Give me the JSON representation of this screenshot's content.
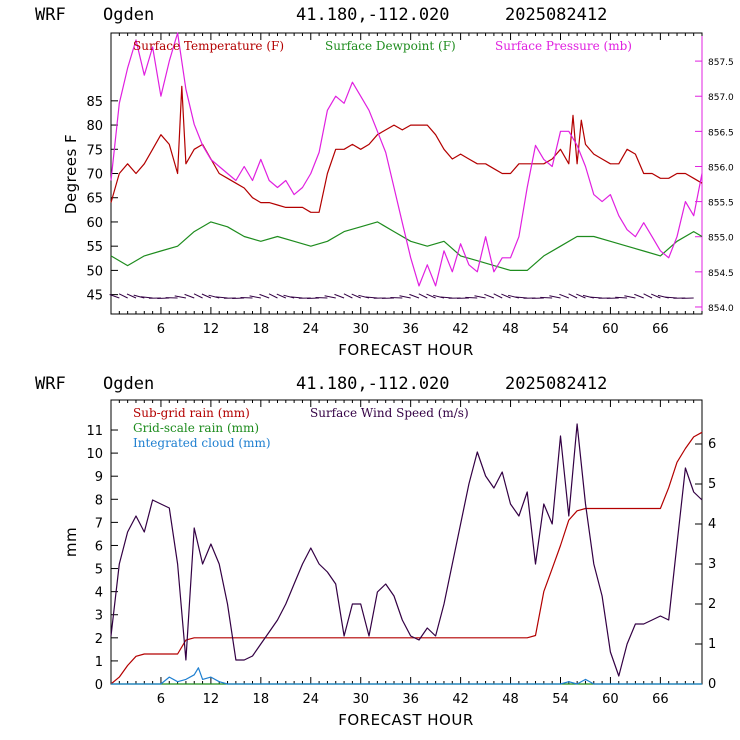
{
  "colors": {
    "temperature": "#b30000",
    "dewpoint": "#1e8c1e",
    "pressure": "#e020e0",
    "subgrid_rain": "#b30000",
    "gridscale_rain": "#1e8c1e",
    "cloud": "#1e7fd0",
    "wind": "#330044",
    "barbs": "#330044"
  },
  "chart_data": [
    {
      "type": "line",
      "header": {
        "model": "WRF",
        "location": "Ogden",
        "coords": "41.180,-112.020",
        "init": "2025082412"
      },
      "xlabel": "FORECAST HOUR",
      "ylabel": "Degrees F",
      "xlim": [
        0,
        71
      ],
      "ylim": [
        41,
        99
      ],
      "y2lim": [
        853.9,
        857.9
      ],
      "xticks": [
        6,
        12,
        18,
        24,
        30,
        36,
        42,
        48,
        54,
        60,
        66
      ],
      "yticks": [
        45,
        50,
        55,
        60,
        65,
        70,
        75,
        80,
        85
      ],
      "y2ticks": [
        "854.0",
        "854.5",
        "855.0",
        "855.5",
        "856.0",
        "856.5",
        "857.0",
        "857.5"
      ],
      "legend_placement": "top",
      "series": [
        {
          "name": "Surface Temperature (F)",
          "axis": "left",
          "x": [
            0,
            1,
            2,
            3,
            4,
            5,
            6,
            7,
            8,
            8.5,
            9,
            10,
            11,
            12,
            13,
            14,
            15,
            16,
            17,
            18,
            19,
            20,
            21,
            22,
            23,
            24,
            25,
            26,
            27,
            28,
            29,
            30,
            31,
            32,
            33,
            34,
            35,
            36,
            37,
            38,
            39,
            40,
            41,
            42,
            43,
            44,
            45,
            46,
            47,
            48,
            49,
            50,
            51,
            52,
            53,
            54,
            55,
            55.5,
            56,
            56.5,
            57,
            58,
            59,
            60,
            61,
            62,
            63,
            64,
            65,
            66,
            67,
            68,
            69,
            70,
            71
          ],
          "y": [
            64,
            70,
            72,
            70,
            72,
            75,
            78,
            76,
            70,
            88,
            72,
            75,
            76,
            73,
            70,
            69,
            68,
            67,
            65,
            64,
            64,
            63.5,
            63,
            63,
            63,
            62,
            62,
            70,
            75,
            75,
            76,
            75,
            76,
            78,
            79,
            80,
            79,
            80,
            80,
            80,
            78,
            75,
            73,
            74,
            73,
            72,
            72,
            71,
            70,
            70,
            72,
            72,
            72,
            72,
            73,
            75,
            72,
            82,
            72,
            81,
            76,
            74,
            73,
            72,
            72,
            75,
            74,
            70,
            70,
            69,
            69,
            70,
            70,
            69,
            68
          ]
        },
        {
          "name": "Surface Dewpoint (F)",
          "axis": "left",
          "x": [
            0,
            2,
            4,
            6,
            8,
            10,
            12,
            14,
            16,
            18,
            20,
            22,
            24,
            26,
            28,
            30,
            32,
            34,
            36,
            38,
            40,
            42,
            44,
            46,
            48,
            50,
            52,
            54,
            56,
            58,
            60,
            62,
            64,
            66,
            68,
            70,
            71
          ],
          "y": [
            53,
            51,
            53,
            54,
            55,
            58,
            60,
            59,
            57,
            56,
            57,
            56,
            55,
            56,
            58,
            59,
            60,
            58,
            56,
            55,
            56,
            53,
            52,
            51,
            50,
            50,
            53,
            55,
            57,
            57,
            56,
            55,
            54,
            53,
            56,
            58,
            57
          ]
        },
        {
          "name": "Surface Pressure (mb)",
          "axis": "right",
          "x": [
            0,
            1,
            2,
            3,
            4,
            5,
            6,
            7,
            8,
            9,
            10,
            11,
            12,
            13,
            14,
            15,
            16,
            17,
            18,
            19,
            20,
            21,
            22,
            23,
            24,
            25,
            26,
            27,
            28,
            29,
            30,
            31,
            32,
            33,
            34,
            35,
            36,
            37,
            38,
            39,
            40,
            41,
            42,
            43,
            44,
            45,
            46,
            47,
            48,
            49,
            50,
            51,
            52,
            53,
            54,
            55,
            56,
            57,
            58,
            59,
            60,
            61,
            62,
            63,
            64,
            65,
            66,
            67,
            68,
            69,
            70,
            71
          ],
          "y": [
            855.8,
            856.9,
            857.4,
            857.8,
            857.3,
            857.7,
            857.0,
            857.5,
            857.9,
            857.1,
            856.6,
            856.3,
            856.1,
            856.0,
            855.9,
            855.8,
            856.0,
            855.8,
            856.1,
            855.8,
            855.7,
            855.8,
            855.6,
            855.7,
            855.9,
            856.2,
            856.8,
            857.0,
            856.9,
            857.2,
            857.0,
            856.8,
            856.5,
            856.2,
            855.7,
            855.2,
            854.7,
            854.3,
            854.6,
            854.3,
            854.8,
            854.5,
            854.9,
            854.6,
            854.5,
            855.0,
            854.5,
            854.7,
            854.7,
            855.0,
            855.7,
            856.3,
            856.1,
            856.0,
            856.5,
            856.5,
            856.3,
            856.0,
            855.6,
            855.5,
            855.6,
            855.3,
            855.1,
            855.0,
            855.2,
            855.0,
            854.8,
            854.7,
            855.0,
            855.5,
            855.3,
            855.9
          ]
        }
      ]
    },
    {
      "type": "line",
      "header": {
        "model": "WRF",
        "location": "Ogden",
        "coords": "41.180,-112.020",
        "init": "2025082412"
      },
      "xlabel": "FORECAST HOUR",
      "ylabel": "mm",
      "xlim": [
        0,
        71
      ],
      "ylim": [
        0,
        12.3
      ],
      "y2lim": [
        0,
        7.1
      ],
      "xticks": [
        6,
        12,
        18,
        24,
        30,
        36,
        42,
        48,
        54,
        60,
        66
      ],
      "yticks": [
        0,
        1,
        2,
        3,
        4,
        5,
        6,
        7,
        8,
        9,
        10,
        11
      ],
      "y2ticks": [
        0,
        1,
        2,
        3,
        4,
        5,
        6
      ],
      "legend_placement": "top-left",
      "series": [
        {
          "name": "Sub-grid rain (mm)",
          "axis": "left",
          "x": [
            0,
            1,
            2,
            3,
            4,
            5,
            6,
            7,
            8,
            9,
            10,
            11,
            12,
            13,
            14,
            20,
            30,
            40,
            48,
            50,
            51,
            52,
            53,
            54,
            55,
            56,
            57,
            58,
            59,
            60,
            66,
            67,
            68,
            69,
            70,
            71
          ],
          "y": [
            0,
            0.3,
            0.8,
            1.2,
            1.3,
            1.3,
            1.3,
            1.3,
            1.3,
            1.9,
            2.0,
            2.0,
            2.0,
            2.0,
            2.0,
            2.0,
            2.0,
            2.0,
            2.0,
            2.0,
            2.1,
            4.0,
            5.0,
            6.0,
            7.1,
            7.5,
            7.6,
            7.6,
            7.6,
            7.6,
            7.6,
            8.5,
            9.6,
            10.2,
            10.7,
            10.9
          ]
        },
        {
          "name": "Grid-scale rain (mm)",
          "axis": "left",
          "x": [
            0,
            71
          ],
          "y": [
            0,
            0
          ]
        },
        {
          "name": "Integrated cloud (mm)",
          "axis": "left",
          "x": [
            0,
            6,
            7,
            8,
            9,
            10,
            10.5,
            11,
            12,
            13,
            14,
            16,
            54,
            55,
            56,
            57,
            58,
            71
          ],
          "y": [
            0,
            0,
            0.3,
            0.1,
            0.2,
            0.4,
            0.7,
            0.2,
            0.3,
            0.1,
            0,
            0,
            0,
            0.1,
            0,
            0.2,
            0,
            0
          ]
        },
        {
          "name": "Surface Wind Speed (m/s)",
          "axis": "right",
          "x": [
            0,
            1,
            2,
            3,
            4,
            5,
            6,
            7,
            8,
            9,
            10,
            11,
            12,
            13,
            14,
            15,
            16,
            17,
            18,
            19,
            20,
            21,
            22,
            23,
            24,
            25,
            26,
            27,
            28,
            29,
            30,
            31,
            32,
            33,
            34,
            35,
            36,
            37,
            38,
            39,
            40,
            41,
            42,
            43,
            44,
            45,
            46,
            47,
            48,
            49,
            50,
            51,
            52,
            53,
            54,
            55,
            56,
            57,
            58,
            59,
            60,
            61,
            62,
            63,
            64,
            65,
            66,
            67,
            68,
            69,
            70,
            71
          ],
          "y": [
            1.2,
            3.0,
            3.8,
            4.2,
            3.8,
            4.6,
            4.5,
            4.4,
            3.0,
            0.6,
            3.9,
            3.0,
            3.5,
            3.0,
            2.0,
            0.6,
            0.6,
            0.7,
            1.0,
            1.3,
            1.6,
            2.0,
            2.5,
            3.0,
            3.4,
            3.0,
            2.8,
            2.5,
            1.2,
            2.0,
            2.0,
            1.2,
            2.3,
            2.5,
            2.2,
            1.6,
            1.2,
            1.1,
            1.4,
            1.2,
            2.0,
            3.0,
            4.0,
            5.0,
            5.8,
            5.2,
            4.9,
            5.3,
            4.5,
            4.2,
            4.8,
            3.0,
            4.5,
            4.0,
            6.2,
            4.2,
            6.5,
            4.5,
            3.0,
            2.2,
            0.8,
            0.2,
            1.0,
            1.5,
            1.5,
            1.6,
            1.7,
            1.6,
            3.5,
            5.4,
            4.8,
            4.6
          ]
        }
      ]
    }
  ]
}
